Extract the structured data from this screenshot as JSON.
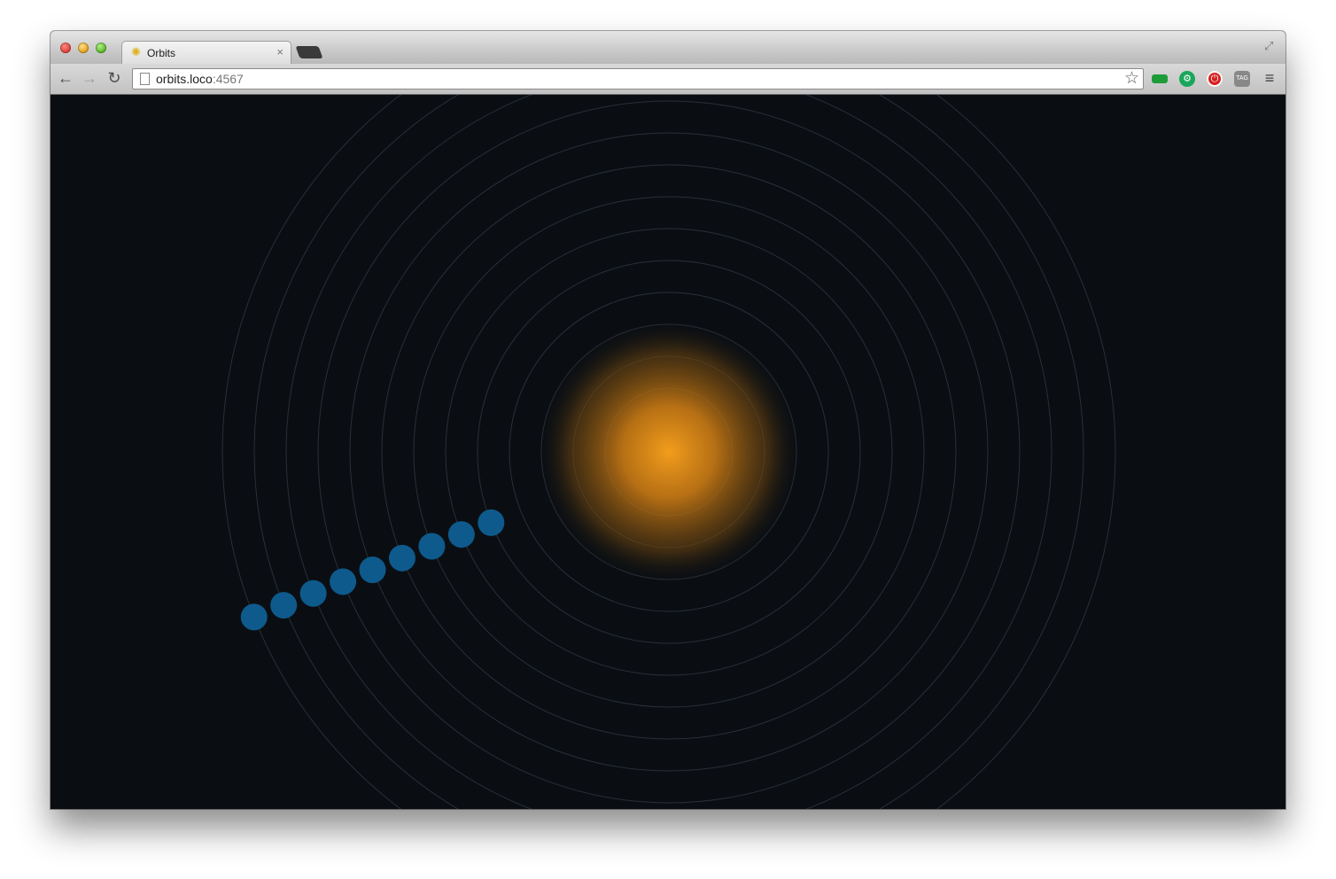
{
  "browser": {
    "tab": {
      "title": "Orbits",
      "favicon": "sun-icon",
      "close": "×"
    },
    "address_bar": {
      "host": "orbits.loco",
      "port": ":4567"
    },
    "toolbar_icons": [
      "back-arrow-icon",
      "forward-arrow-icon",
      "reload-icon",
      "bookmark-star-icon",
      "extension-icons",
      "menu-icon"
    ]
  },
  "scene": {
    "background": "#0a0e13",
    "sun_color": "#f09a1a",
    "orbit_color": "#2a2f36",
    "planet_color": "#0e5a8c",
    "orbit_count": 14,
    "planet_count": 9
  }
}
